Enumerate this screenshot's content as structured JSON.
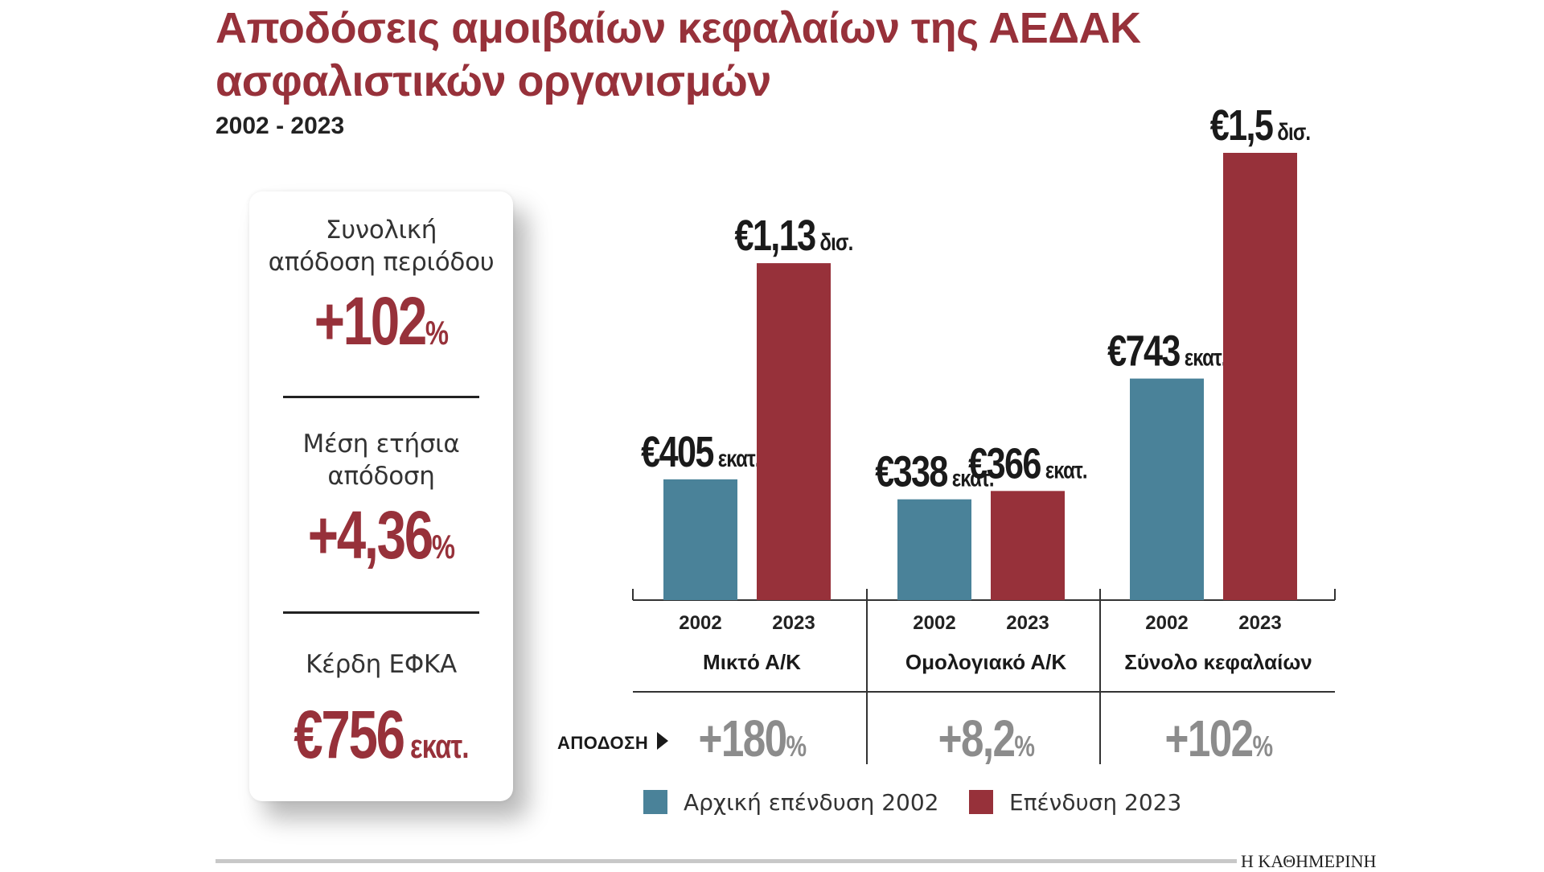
{
  "title_lines": [
    "Αποδόσεις αμοιβαίων κεφαλαίων της ΑΕΔΑΚ",
    "ασφαλιστικών οργανισμών"
  ],
  "subtitle": "2002 - 2023",
  "summary_card": {
    "items": [
      {
        "label_lines": [
          "Συνολική",
          "απόδοση περιόδου"
        ],
        "value": "+102",
        "unit": "%"
      },
      {
        "label_lines": [
          "Μέση ετήσια",
          "απόδοση"
        ],
        "value": "+4,36",
        "unit": "%"
      },
      {
        "label_lines": [
          "Κέρδη ΕΦΚΑ"
        ],
        "value": "€756",
        "unit": " εκατ."
      }
    ]
  },
  "chart_data": {
    "type": "bar",
    "title": "Αποδόσεις αμοιβαίων κεφαλαίων της ΑΕΔΑΚ ασφαλιστικών οργανισμών",
    "categories": [
      "Μικτό Α/Κ",
      "Ομολογιακό Α/Κ",
      "Σύνολο κεφαλαίων"
    ],
    "bar_year_labels": [
      "2002",
      "2023"
    ],
    "unit": "εκατ. €",
    "series": [
      {
        "name": "Αρχική επένδυση 2002",
        "color": "#4a8299",
        "values": [
          405,
          338,
          743
        ],
        "labels": [
          [
            "€405",
            " εκατ."
          ],
          [
            "€338",
            " εκατ."
          ],
          [
            "€743",
            " εκατ."
          ]
        ]
      },
      {
        "name": "Επένδυση 2023",
        "color": "#97313a",
        "values": [
          1130,
          366,
          1500
        ],
        "labels": [
          [
            "€1,13",
            " δισ."
          ],
          [
            "€366",
            " εκατ."
          ],
          [
            "€1,5",
            " δισ."
          ]
        ]
      }
    ],
    "returns_label": "ΑΠΟΔΟΣΗ",
    "returns": [
      [
        "+180",
        "%"
      ],
      [
        "+8,2",
        "%"
      ],
      [
        "+102",
        "%"
      ]
    ],
    "legend_position": "bottom",
    "grid": false
  },
  "colors": {
    "accent": "#97313a",
    "teal": "#4a8299",
    "return_gray": "#8c8c8c"
  },
  "brand": "Η ΚΑΘΗΜΕΡΙΝΗ"
}
